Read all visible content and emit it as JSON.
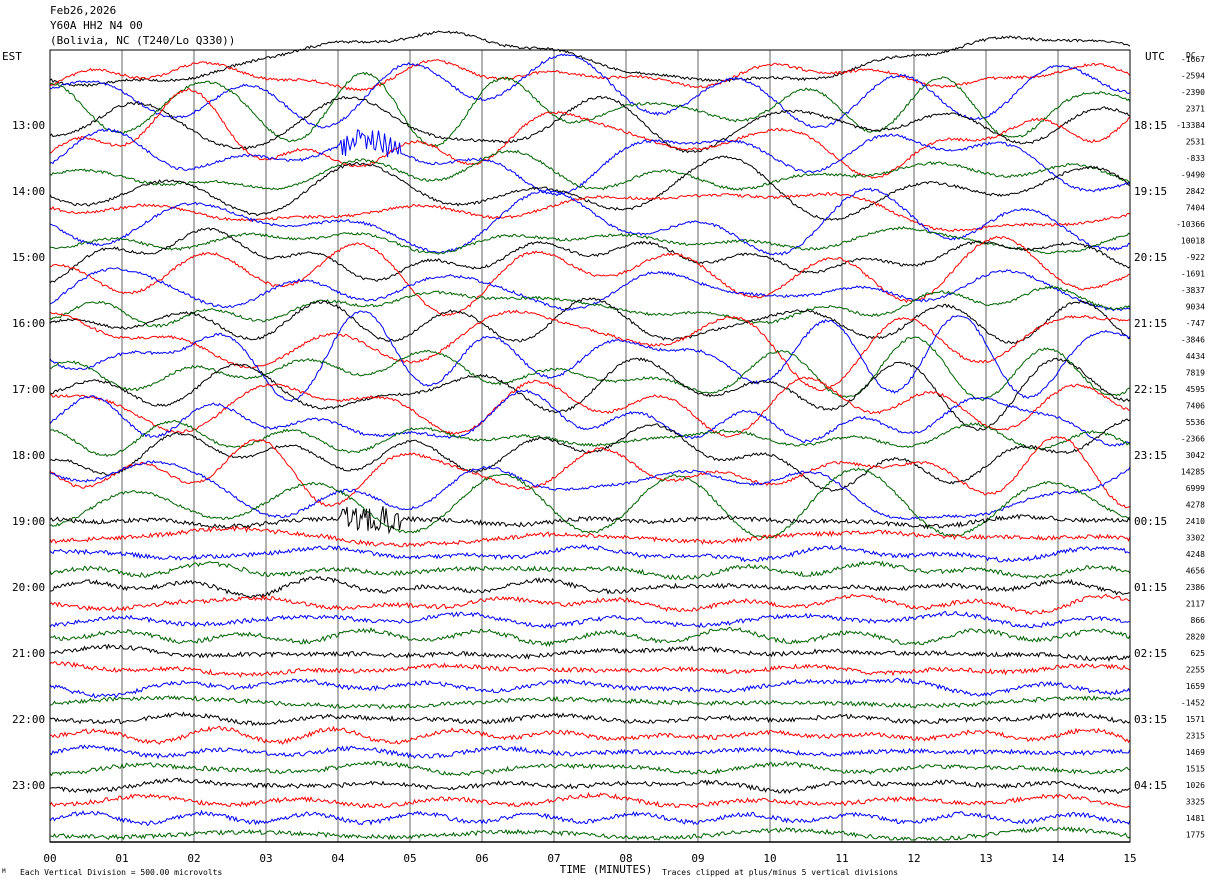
{
  "header": {
    "date": "Feb26,2026",
    "station": "Y60A HH2 N4 00",
    "location": "(Bolivia, NC (T240/Lo Q330))"
  },
  "footer": {
    "scale_note": "Each Vertical Division =  500.00 microvolts",
    "clip_note": "Traces clipped at plus/minus 5 vertical divisions",
    "mark": "M"
  },
  "chart_data": {
    "type": "line",
    "title": "",
    "xlabel": "TIME (MINUTES)",
    "ylabel_left": "EST",
    "ylabel_right": "UTC",
    "dc_label": "DC",
    "x_range": [
      0,
      15
    ],
    "x_ticks": [
      "00",
      "01",
      "02",
      "03",
      "04",
      "05",
      "06",
      "07",
      "08",
      "09",
      "10",
      "11",
      "12",
      "13",
      "14",
      "15"
    ],
    "trace_colors": [
      "#000000",
      "#ff0000",
      "#0000ff",
      "#006400"
    ],
    "left_hour_labels": [
      "13:00",
      "14:00",
      "15:00",
      "16:00",
      "17:00",
      "18:00",
      "19:00",
      "20:00",
      "21:00",
      "22:00",
      "23:00"
    ],
    "right_hour_labels": [
      "18:15",
      "19:15",
      "20:15",
      "21:15",
      "22:15",
      "23:15",
      "00:15",
      "01:15",
      "02:15",
      "03:15",
      "04:15"
    ],
    "trace_count": 48,
    "dc_offsets": [
      "-1667",
      "-2594",
      "-2390",
      "2371",
      "-13384",
      "2531",
      "-833",
      "-9490",
      "2842",
      "7404",
      "-10366",
      "10018",
      "-922",
      "-1691",
      "-3837",
      "9034",
      "-747",
      "-3846",
      "4434",
      "7819",
      "4595",
      "7406",
      "5536",
      "-2366",
      "3042",
      "14285",
      "6999",
      "4278",
      "2410",
      "3302",
      "4248",
      "4656",
      "2386",
      "2117",
      "866",
      "2820",
      "625",
      "2255",
      "1659",
      "-1452",
      "1571",
      "2315",
      "1469",
      "1515",
      "1026",
      "3325",
      "1481",
      "1775"
    ]
  }
}
